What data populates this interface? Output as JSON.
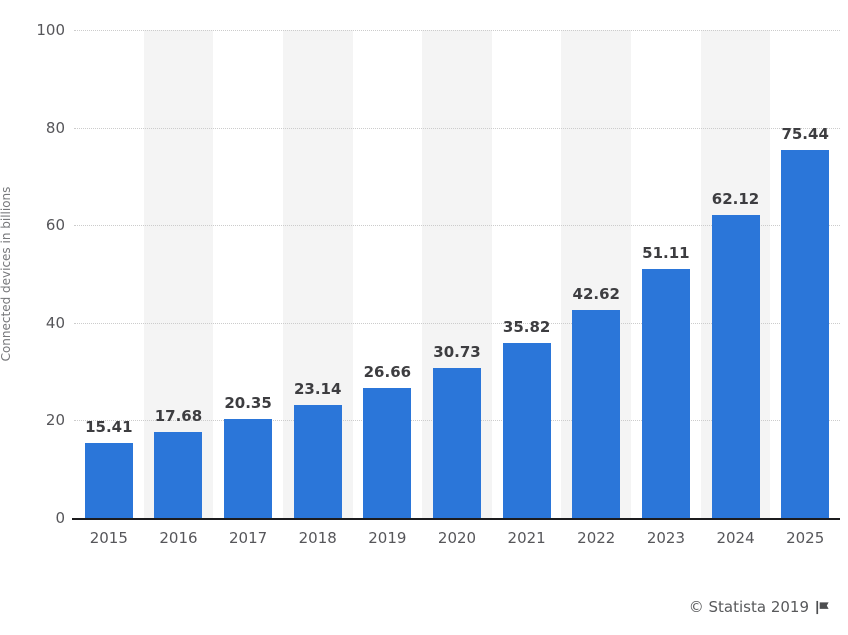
{
  "chart_data": {
    "type": "bar",
    "categories": [
      "2015",
      "2016",
      "2017",
      "2018",
      "2019",
      "2020",
      "2021",
      "2022",
      "2023",
      "2024",
      "2025"
    ],
    "values": [
      15.41,
      17.68,
      20.35,
      23.14,
      26.66,
      30.73,
      35.82,
      42.62,
      51.11,
      62.12,
      75.44
    ],
    "value_labels": [
      "15.41",
      "17.68",
      "20.35",
      "23.14",
      "26.66",
      "30.73",
      "35.82",
      "42.62",
      "51.11",
      "62.12",
      "75.44"
    ],
    "title": "",
    "xlabel": "",
    "ylabel": "Connected devices in billions",
    "ylim": [
      0,
      100
    ],
    "yticks": [
      0,
      20,
      40,
      60,
      80,
      100
    ],
    "grid": "horizontal dotted lines at each y tick",
    "legend_position": "none",
    "background_stripes": "light gray vertical bands behind alternate columns starting at 2016"
  },
  "footer": {
    "credit": "© Statista 2019"
  },
  "icons": {
    "flag": "flag-icon"
  },
  "colors": {
    "bar": "#2b76d9",
    "stripe": "#f4f4f4",
    "gridline": "#cccccc",
    "axis_line": "#1c1c1e",
    "tick_label": "#56565a",
    "value_label": "#3d3d40",
    "axis_title": "#77787b",
    "credit": "#58595b"
  }
}
